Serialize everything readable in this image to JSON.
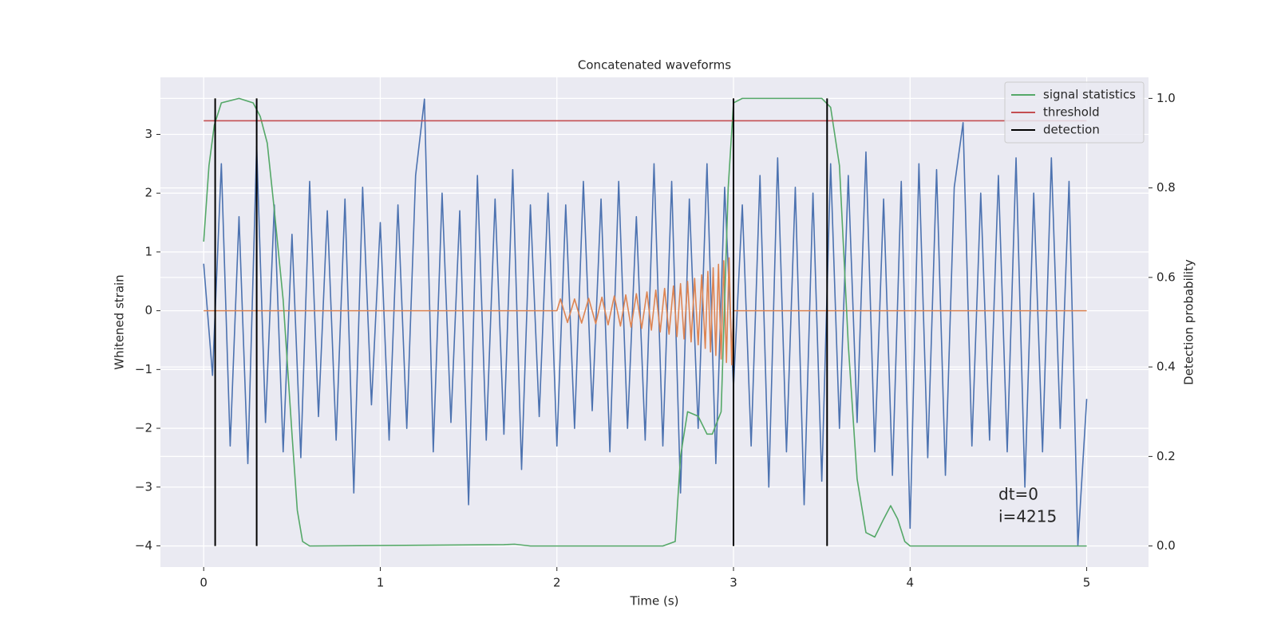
{
  "chart_data": {
    "type": "line",
    "title": "Concatenated waveforms",
    "xlabel": "Time (s)",
    "ylabel": "Whitened strain",
    "y2label": "Detection probability",
    "xlim": [
      -0.245,
      5.35
    ],
    "ylim": [
      -4.36,
      3.97
    ],
    "y2lim": [
      -0.047,
      1.047
    ],
    "xticks": [
      0,
      1,
      2,
      3,
      4,
      5
    ],
    "yticks": [
      {
        "value": -4,
        "label": "−4"
      },
      {
        "value": -3,
        "label": "−3"
      },
      {
        "value": -2,
        "label": "−2"
      },
      {
        "value": -1,
        "label": "−1"
      },
      0,
      1,
      2,
      3
    ],
    "y2ticks": [
      {
        "value": 0,
        "label": "0.0"
      },
      0.2,
      0.4,
      0.6,
      0.8,
      {
        "value": 1,
        "label": "1.0"
      }
    ],
    "grid": true,
    "legend": "upper right",
    "series": [
      {
        "color": "#4c72b0",
        "x": [
          0,
          0.05,
          0.1,
          0.15,
          0.2,
          0.25,
          0.3,
          0.35,
          0.4,
          0.45,
          0.5,
          0.55,
          0.6,
          0.65,
          0.7,
          0.75,
          0.8,
          0.85,
          0.9,
          0.95,
          1,
          1.05,
          1.1,
          1.15,
          1.2,
          1.25,
          1.3,
          1.35,
          1.4,
          1.45,
          1.5,
          1.55,
          1.6,
          1.65,
          1.7,
          1.75,
          1.8,
          1.85,
          1.9,
          1.95,
          2,
          2.05,
          2.1,
          2.15,
          2.2,
          2.25,
          2.3,
          2.35,
          2.4,
          2.45,
          2.5,
          2.55,
          2.6,
          2.65,
          2.7,
          2.75,
          2.8,
          2.85,
          2.9,
          2.95,
          3,
          3.05,
          3.1,
          3.15,
          3.2,
          3.25,
          3.3,
          3.35,
          3.4,
          3.45,
          3.5,
          3.55,
          3.6,
          3.65,
          3.7,
          3.75,
          3.8,
          3.85,
          3.9,
          3.95,
          4,
          4.05,
          4.1,
          4.15,
          4.2,
          4.25,
          4.3,
          4.35,
          4.4,
          4.45,
          4.5,
          4.55,
          4.6,
          4.65,
          4.7,
          4.75,
          4.8,
          4.85,
          4.9,
          4.95,
          5
        ],
        "values": [
          0.8,
          -1.1,
          2.5,
          -2.3,
          1.6,
          -2.6,
          2.8,
          -1.9,
          1.8,
          -2.4,
          1.3,
          -2.5,
          2.2,
          -1.8,
          1.7,
          -2.2,
          1.9,
          -3.1,
          2.1,
          -1.6,
          1.5,
          -2.2,
          1.8,
          -2.0,
          2.3,
          3.6,
          -2.4,
          2.0,
          -1.9,
          1.7,
          -3.3,
          2.3,
          -2.2,
          1.9,
          -2.1,
          2.4,
          -2.7,
          1.8,
          -1.8,
          2.0,
          -2.3,
          1.8,
          -2.0,
          2.2,
          -1.7,
          1.9,
          -2.4,
          2.2,
          -2.0,
          1.6,
          -2.2,
          2.5,
          -2.3,
          2.2,
          -3.1,
          1.9,
          -2.0,
          2.5,
          -2.6,
          2.1,
          -1.3,
          1.8,
          -2.3,
          2.3,
          -3.0,
          2.6,
          -2.4,
          2.1,
          -3.3,
          2.0,
          -2.9,
          2.5,
          -2.0,
          2.3,
          -1.9,
          2.7,
          -2.4,
          1.9,
          -2.8,
          2.2,
          -3.7,
          2.5,
          -2.5,
          2.4,
          -2.8,
          2.1,
          3.2,
          -2.3,
          2.0,
          -2.2,
          2.3,
          -2.4,
          2.6,
          -3.0,
          2.0,
          -2.4,
          2.6,
          -2.0,
          2.2,
          -4.0,
          -1.5
        ]
      },
      {
        "color": "#dd8452",
        "x": [
          0,
          2,
          2.02,
          2.06,
          2.1,
          2.14,
          2.18,
          2.22,
          2.255,
          2.29,
          2.325,
          2.36,
          2.39,
          2.42,
          2.45,
          2.48,
          2.51,
          2.535,
          2.56,
          2.585,
          2.61,
          2.635,
          2.66,
          2.68,
          2.7,
          2.72,
          2.74,
          2.76,
          2.78,
          2.8,
          2.82,
          2.84,
          2.855,
          2.87,
          2.885,
          2.9,
          2.915,
          2.93,
          2.945,
          2.96,
          2.975,
          2.99,
          3,
          5
        ],
        "values": [
          0,
          0,
          0.2,
          -0.2,
          0.2,
          -0.21,
          0.21,
          -0.22,
          0.23,
          -0.24,
          0.25,
          -0.26,
          0.27,
          -0.28,
          0.29,
          -0.3,
          0.32,
          -0.33,
          0.35,
          -0.36,
          0.38,
          -0.4,
          0.42,
          -0.44,
          0.46,
          -0.48,
          0.5,
          -0.53,
          0.55,
          -0.58,
          0.61,
          -0.64,
          0.67,
          -0.7,
          0.73,
          -0.76,
          0.79,
          -0.82,
          0.85,
          -0.88,
          0.9,
          -0.92,
          0,
          0
        ]
      },
      {
        "name": "signal statistics",
        "color": "#55a868",
        "axis": "y2",
        "x": [
          0,
          0.03,
          0.06,
          0.1,
          0.2,
          0.28,
          0.32,
          0.36,
          0.4,
          0.45,
          0.5,
          0.53,
          0.56,
          0.6,
          1.7,
          1.76,
          1.85,
          2.6,
          2.67,
          2.7,
          2.74,
          2.8,
          2.85,
          2.88,
          2.93,
          2.97,
          3,
          3.05,
          3.5,
          3.55,
          3.6,
          3.65,
          3.7,
          3.75,
          3.8,
          3.85,
          3.89,
          3.93,
          3.97,
          4,
          5
        ],
        "values": [
          0.68,
          0.85,
          0.94,
          0.99,
          1,
          0.99,
          0.96,
          0.9,
          0.75,
          0.55,
          0.25,
          0.08,
          0.01,
          0,
          0.003,
          0.004,
          0,
          0,
          0.01,
          0.2,
          0.3,
          0.29,
          0.25,
          0.25,
          0.3,
          0.8,
          0.99,
          1,
          1,
          0.98,
          0.85,
          0.45,
          0.15,
          0.03,
          0.02,
          0.06,
          0.09,
          0.06,
          0.01,
          0,
          0
        ]
      },
      {
        "name": "threshold",
        "color": "#c44e52",
        "axis": "y2",
        "x": [
          0,
          5
        ],
        "values": [
          0.95,
          0.95
        ]
      }
    ],
    "detection": {
      "name": "detection",
      "color": "#000000",
      "x": [
        0.065,
        0.3,
        3.0,
        3.53
      ],
      "y2span": [
        0,
        1
      ]
    },
    "annotations": [
      "dt=0",
      "i=4215"
    ]
  }
}
